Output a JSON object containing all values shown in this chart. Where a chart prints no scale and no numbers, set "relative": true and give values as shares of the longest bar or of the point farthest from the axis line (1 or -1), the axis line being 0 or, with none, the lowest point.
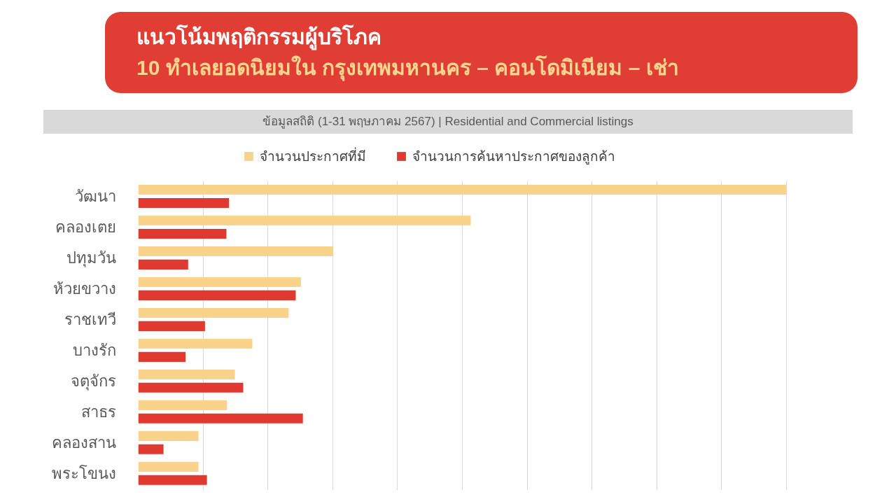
{
  "chart_data": {
    "type": "bar",
    "orientation": "horizontal",
    "relative": true,
    "title": "แนวโน้มพฤติกรรมผู้บริโภค",
    "subtitle": "10 ทำเลยอดนิยมใน กรุงเทพมหานคร – คอนโดมิเนียม – เช่า",
    "annotations": [
      "ข้อมูลสถิติ (1-31 พฤษภาคม 2567) | Residential and Commercial listings"
    ],
    "categories": [
      "วัฒนา",
      "คลองเตย",
      "ปทุมวัน",
      "ห้วยขวาง",
      "ราชเทวี",
      "บางรัก",
      "จตุจักร",
      "สาธร",
      "คลองสาน",
      "พระโขนง"
    ],
    "series": [
      {
        "name": "จำนวนประกาศที่มี",
        "color": "#f9d38b",
        "values": [
          1.0,
          0.513,
          0.301,
          0.251,
          0.232,
          0.176,
          0.149,
          0.137,
          0.093,
          0.093
        ]
      },
      {
        "name": "จำนวนการค้นหาประกาศของลูกค้า",
        "color": "#e0392f",
        "values": [
          0.14,
          0.136,
          0.077,
          0.243,
          0.103,
          0.073,
          0.162,
          0.254,
          0.039,
          0.106
        ]
      }
    ],
    "legend": "top",
    "grid": "x",
    "tick_labels": "y"
  }
}
